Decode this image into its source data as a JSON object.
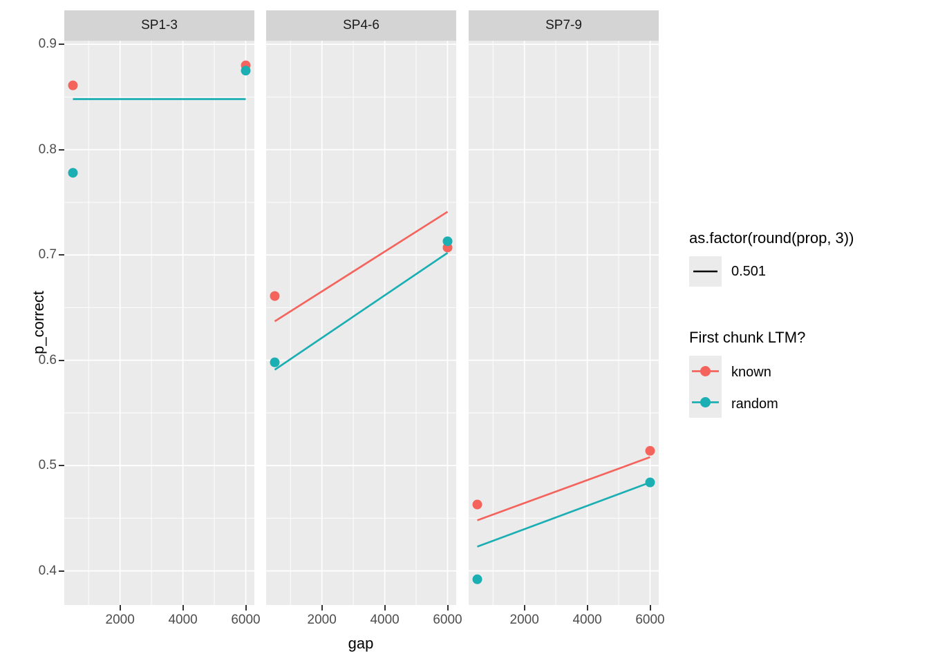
{
  "chart_data": {
    "type": "scatter",
    "title": "",
    "xlabel": "gap",
    "ylabel": "p_correct",
    "xlim": [
      225,
      6275
    ],
    "ylim": [
      0.3676,
      0.9034
    ],
    "x_ticks": [
      2000,
      4000,
      6000
    ],
    "x_minor_ticks": [
      1000,
      3000,
      5000
    ],
    "y_ticks": [
      0.9,
      0.8,
      0.7,
      0.6,
      0.5,
      0.4
    ],
    "y_minor_ticks": [
      0.85,
      0.75,
      0.65,
      0.55,
      0.45
    ],
    "grid": "on",
    "legend_position": "right",
    "panel_bg": "#EBEBEB",
    "strip_bg": "#D4D4D4",
    "grid_color": "#FFFFFF",
    "series_colors": {
      "known": "#F4645D",
      "random": "#1BAEB3"
    },
    "facets": [
      {
        "label": "SP1-3",
        "points": [
          {
            "group": "known",
            "x": 500,
            "y": 0.861
          },
          {
            "group": "known",
            "x": 6000,
            "y": 0.88
          },
          {
            "group": "random",
            "x": 500,
            "y": 0.778
          },
          {
            "group": "random",
            "x": 6000,
            "y": 0.875
          }
        ],
        "lines": [
          {
            "group": "random",
            "x1": 500,
            "y1": 0.848,
            "x2": 6000,
            "y2": 0.848
          }
        ]
      },
      {
        "label": "SP4-6",
        "points": [
          {
            "group": "known",
            "x": 500,
            "y": 0.661
          },
          {
            "group": "known",
            "x": 6000,
            "y": 0.707
          },
          {
            "group": "random",
            "x": 500,
            "y": 0.598
          },
          {
            "group": "random",
            "x": 6000,
            "y": 0.713
          }
        ],
        "lines": [
          {
            "group": "known",
            "x1": 500,
            "y1": 0.637,
            "x2": 6000,
            "y2": 0.741
          },
          {
            "group": "random",
            "x1": 500,
            "y1": 0.591,
            "x2": 6000,
            "y2": 0.702
          }
        ]
      },
      {
        "label": "SP7-9",
        "points": [
          {
            "group": "known",
            "x": 500,
            "y": 0.463
          },
          {
            "group": "known",
            "x": 6000,
            "y": 0.514
          },
          {
            "group": "random",
            "x": 500,
            "y": 0.392
          },
          {
            "group": "random",
            "x": 6000,
            "y": 0.484
          }
        ],
        "lines": [
          {
            "group": "known",
            "x1": 500,
            "y1": 0.448,
            "x2": 6000,
            "y2": 0.508
          },
          {
            "group": "random",
            "x1": 500,
            "y1": 0.423,
            "x2": 6000,
            "y2": 0.484
          }
        ]
      }
    ]
  },
  "legend": {
    "linetype_group": {
      "title": "as.factor(round(prop, 3))",
      "items": [
        {
          "label": "0.501",
          "line_color": "#000000"
        }
      ]
    },
    "color_group": {
      "title": "First chunk LTM?",
      "items": [
        {
          "label": "known",
          "color": "#F4645D"
        },
        {
          "label": "random",
          "color": "#1BAEB3"
        }
      ]
    }
  }
}
